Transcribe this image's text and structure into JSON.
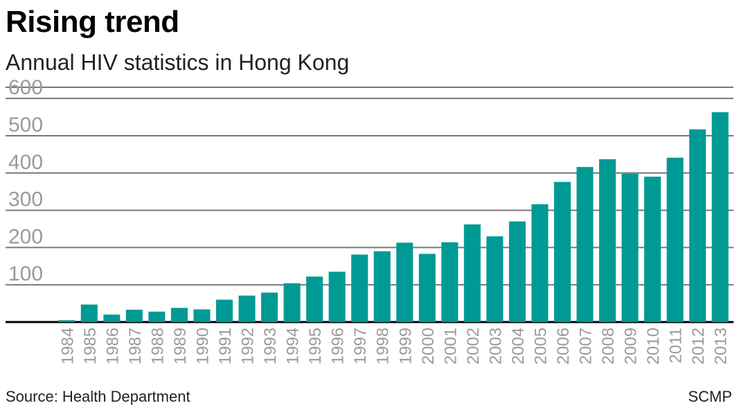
{
  "header": {
    "title": "Rising trend",
    "subtitle": "Annual HIV statistics in Hong Kong"
  },
  "footer": {
    "source": "Source: Health Department",
    "credit": "SCMP"
  },
  "colors": {
    "bar": "#009a94",
    "grid": "#777777",
    "baseline": "#000000",
    "tick_text": "#9a9a9a"
  },
  "chart_data": {
    "type": "bar",
    "title": "Rising trend",
    "subtitle": "Annual HIV statistics in Hong Kong",
    "xlabel": "",
    "ylabel": "",
    "ylim": [
      0,
      630
    ],
    "yticks": [
      100,
      200,
      300,
      400,
      500,
      600
    ],
    "grid": true,
    "categories": [
      "1984",
      "1985",
      "1986",
      "1987",
      "1988",
      "1989",
      "1990",
      "1991",
      "1992",
      "1993",
      "1994",
      "1995",
      "1996",
      "1997",
      "1998",
      "1999",
      "2000",
      "2001",
      "2002",
      "2003",
      "2004",
      "2005",
      "2006",
      "2007",
      "2008",
      "2009",
      "2010",
      "2011",
      "2012",
      "2013"
    ],
    "values": [
      5,
      47,
      20,
      33,
      28,
      38,
      34,
      60,
      71,
      79,
      104,
      122,
      135,
      181,
      190,
      213,
      183,
      214,
      262,
      230,
      270,
      316,
      376,
      416,
      437,
      398,
      390,
      441,
      517,
      563
    ]
  }
}
